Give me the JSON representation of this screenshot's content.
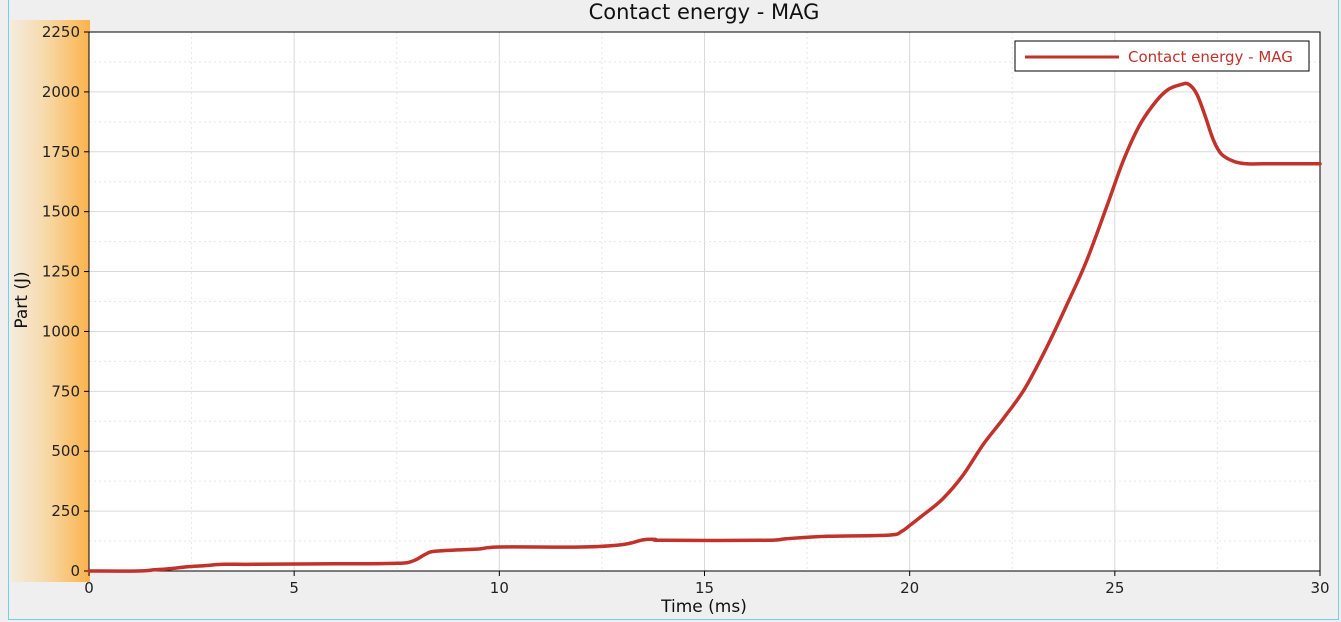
{
  "chart_data": {
    "type": "line",
    "title": "Contact energy - MAG",
    "xlabel": "Time (ms)",
    "ylabel": "Part (J)",
    "xlim": [
      0,
      30
    ],
    "ylim": [
      0,
      2250
    ],
    "xticks": [
      "0",
      "5",
      "10",
      "15",
      "20",
      "25",
      "30"
    ],
    "yticks": [
      "0",
      "250",
      "500",
      "750",
      "1000",
      "1250",
      "1500",
      "1750",
      "2000",
      "2250"
    ],
    "grid": true,
    "legend_position": "top-right",
    "series": [
      {
        "name": "Contact energy - MAG",
        "color": "#c0322a",
        "x": [
          0,
          1.2,
          1.6,
          2.0,
          2.4,
          2.8,
          3.3,
          4.0,
          6.0,
          7.5,
          7.9,
          8.2,
          8.4,
          9.0,
          9.5,
          10.0,
          12.0,
          13.0,
          13.5,
          13.8,
          14.0,
          16.5,
          17.0,
          18.0,
          19.5,
          19.8,
          20.0,
          20.3,
          20.8,
          21.3,
          21.8,
          22.3,
          22.8,
          23.3,
          23.8,
          24.3,
          24.8,
          25.2,
          25.6,
          26.0,
          26.3,
          26.6,
          26.8,
          27.0,
          27.2,
          27.4,
          27.6,
          27.9,
          28.2,
          28.6,
          29.0,
          30.0
        ],
        "y": [
          0,
          0,
          5,
          10,
          18,
          22,
          28,
          28,
          30,
          32,
          42,
          70,
          82,
          88,
          92,
          100,
          100,
          110,
          130,
          132,
          128,
          128,
          135,
          145,
          150,
          165,
          190,
          230,
          300,
          400,
          530,
          640,
          760,
          920,
          1100,
          1290,
          1520,
          1710,
          1860,
          1960,
          2010,
          2030,
          2032,
          1990,
          1900,
          1800,
          1740,
          1710,
          1700,
          1700,
          1700,
          1700
        ]
      }
    ]
  }
}
